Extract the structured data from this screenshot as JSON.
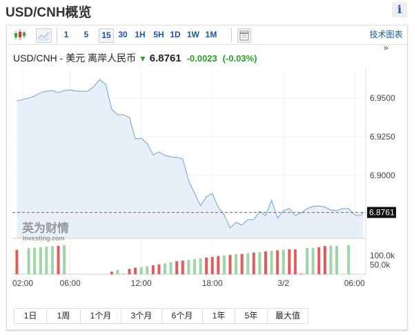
{
  "title": "USD/CNH概览",
  "info_label": "i",
  "toolbar": {
    "intervals": [
      "1",
      "5",
      "15",
      "30",
      "1H",
      "5H",
      "1D",
      "1W",
      "1M"
    ],
    "selected": "15",
    "tech_chart": "技术图表 »"
  },
  "quote": {
    "name": "USD/CNH - 美元 离岸人民币",
    "direction": "down",
    "price": "6.8761",
    "change": "-0.0023",
    "change_pct": "(-0.03%)"
  },
  "ranges": [
    "1日",
    "1周",
    "1个月",
    "3个月",
    "6个月",
    "1年",
    "5年",
    "最大值"
  ],
  "watermark": {
    "cn": "英为财情",
    "en": "Investing.com"
  },
  "colors": {
    "line": "#7fb0dc",
    "fill": "#e8eff8",
    "up": "#9fd4a7",
    "down": "#e25b5b",
    "change": "#2a9d2a",
    "link": "#1a56a8"
  },
  "chart_data": {
    "type": "line",
    "interval": "15",
    "y_ticks": [
      "6.9500",
      "6.9250",
      "6.9000"
    ],
    "ylim": [
      6.8594,
      6.9688
    ],
    "last_label": "6.8761",
    "vol_ticks": [
      "100.0k",
      "50.0k"
    ],
    "x_ticks": [
      "02:00",
      "06:00",
      "12:00",
      "18:00",
      "3/2",
      "06:00"
    ],
    "grid": true,
    "x": [
      "01:30",
      "02:00",
      "02:30",
      "03:00",
      "03:30",
      "04:00",
      "04:30",
      "05:00",
      "05:30",
      "06:00",
      "06:30",
      "07:00",
      "07:30",
      "08:00",
      "08:30",
      "09:00",
      "09:30",
      "10:00",
      "10:30",
      "11:00",
      "11:30",
      "12:00",
      "12:30",
      "13:00",
      "13:30",
      "14:00",
      "14:30",
      "15:00",
      "15:30",
      "16:00",
      "16:30",
      "17:00",
      "17:30",
      "18:00",
      "18:30",
      "19:00",
      "19:30",
      "20:00",
      "20:30",
      "21:00",
      "21:30",
      "22:00",
      "22:30",
      "23:00",
      "23:30",
      "00:00",
      "00:30",
      "01:00",
      "01:30",
      "02:00",
      "02:30",
      "03:00",
      "03:30",
      "04:00",
      "04:30",
      "05:00",
      "05:30",
      "06:00",
      "06:30",
      "06:45"
    ],
    "price": [
      6.9482,
      6.9491,
      6.95,
      6.9513,
      6.9536,
      6.9545,
      6.9549,
      6.9536,
      6.9549,
      6.9554,
      6.9545,
      6.9545,
      6.9545,
      6.9576,
      6.962,
      6.9589,
      6.9429,
      6.9393,
      6.9393,
      6.9375,
      6.9237,
      6.9241,
      6.9206,
      6.9134,
      6.9152,
      6.913,
      6.9121,
      6.9116,
      6.9108,
      6.8965,
      6.8885,
      6.8804,
      6.8862,
      6.8884,
      6.8795,
      6.8746,
      6.8661,
      6.8697,
      6.8679,
      6.8715,
      6.8715,
      6.8768,
      6.8741,
      6.884,
      6.8724,
      6.8773,
      6.8786,
      6.8741,
      6.8759,
      6.8786,
      6.88,
      6.8804,
      6.8795,
      6.8777,
      6.8773,
      6.8786,
      6.8786,
      6.8746,
      6.8741,
      6.8761
    ],
    "volume": [
      131000,
      0,
      140000,
      142000,
      145000,
      148000,
      150000,
      152000,
      155000,
      0,
      0,
      0,
      0,
      0,
      0,
      0,
      14000,
      23000,
      2000,
      29000,
      35000,
      38000,
      42000,
      48000,
      52000,
      58000,
      64000,
      70000,
      73000,
      77000,
      81000,
      86000,
      90000,
      93000,
      97000,
      100000,
      103000,
      107000,
      109000,
      113000,
      116000,
      119000,
      122000,
      126000,
      128000,
      131000,
      134000,
      133000,
      3000,
      140000,
      141000,
      145000,
      151000,
      153000,
      152000,
      0,
      156000,
      0,
      0,
      0
    ],
    "volume_dir": [
      "d",
      "u",
      "u",
      "u",
      "u",
      "u",
      "u",
      "d",
      "u",
      "u",
      "u",
      "u",
      "u",
      "u",
      "u",
      "u",
      "d",
      "u",
      "d",
      "d",
      "d",
      "u",
      "u",
      "d",
      "d",
      "u",
      "u",
      "d",
      "d",
      "u",
      "u",
      "u",
      "d",
      "d",
      "d",
      "u",
      "d",
      "u",
      "d",
      "u",
      "d",
      "u",
      "d",
      "u",
      "d",
      "u",
      "d",
      "d",
      "d",
      "u",
      "u",
      "d",
      "d",
      "u",
      "u",
      "u",
      "u",
      "u",
      "u",
      "u"
    ]
  }
}
